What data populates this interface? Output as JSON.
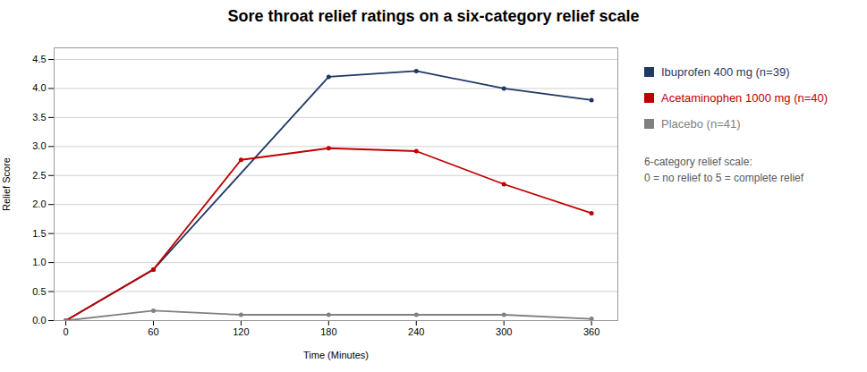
{
  "chart_data": {
    "type": "line",
    "title": "Sore throat relief ratings on a six-category relief scale",
    "xlabel": "Time (Minutes)",
    "ylabel": "Relief Score",
    "xlim": [
      -8,
      378
    ],
    "xticks": [
      0,
      60,
      120,
      180,
      240,
      300,
      360
    ],
    "ylim": [
      0,
      4.7
    ],
    "yticks": [
      {
        "value": 0,
        "label": "0.0"
      },
      0.5,
      {
        "value": 1.0,
        "label": "1.0"
      },
      1.5,
      {
        "value": 2.0,
        "label": "2.0"
      },
      2.5,
      {
        "value": 3.0,
        "label": "3.0"
      },
      3.5,
      {
        "value": 4.0,
        "label": "4.0"
      },
      4.5
    ],
    "grid": true,
    "legend": "right",
    "marker": "circle",
    "series": [
      {
        "name": "Ibuprofen 400 mg (n=39)",
        "color": "#1F3864",
        "x": [
          0,
          60,
          180,
          240,
          300,
          360
        ],
        "values": [
          0,
          0.88,
          4.2,
          4.3,
          4.0,
          3.8
        ]
      },
      {
        "name": "Acetaminophen 1000 mg (n=40)",
        "color": "#C00000",
        "x": [
          0,
          60,
          120,
          180,
          240,
          300,
          360
        ],
        "values": [
          0,
          0.88,
          2.77,
          2.97,
          2.92,
          2.35,
          1.85
        ]
      },
      {
        "name": "Placebo (n=41)",
        "color": "#808080",
        "x": [
          0,
          60,
          120,
          180,
          240,
          300,
          360
        ],
        "values": [
          0,
          0.17,
          0.1,
          0.1,
          0.1,
          0.1,
          0.03
        ]
      }
    ],
    "annotations": [
      "6-category relief scale:",
      "0 = no relief to 5 = complete relief"
    ]
  }
}
